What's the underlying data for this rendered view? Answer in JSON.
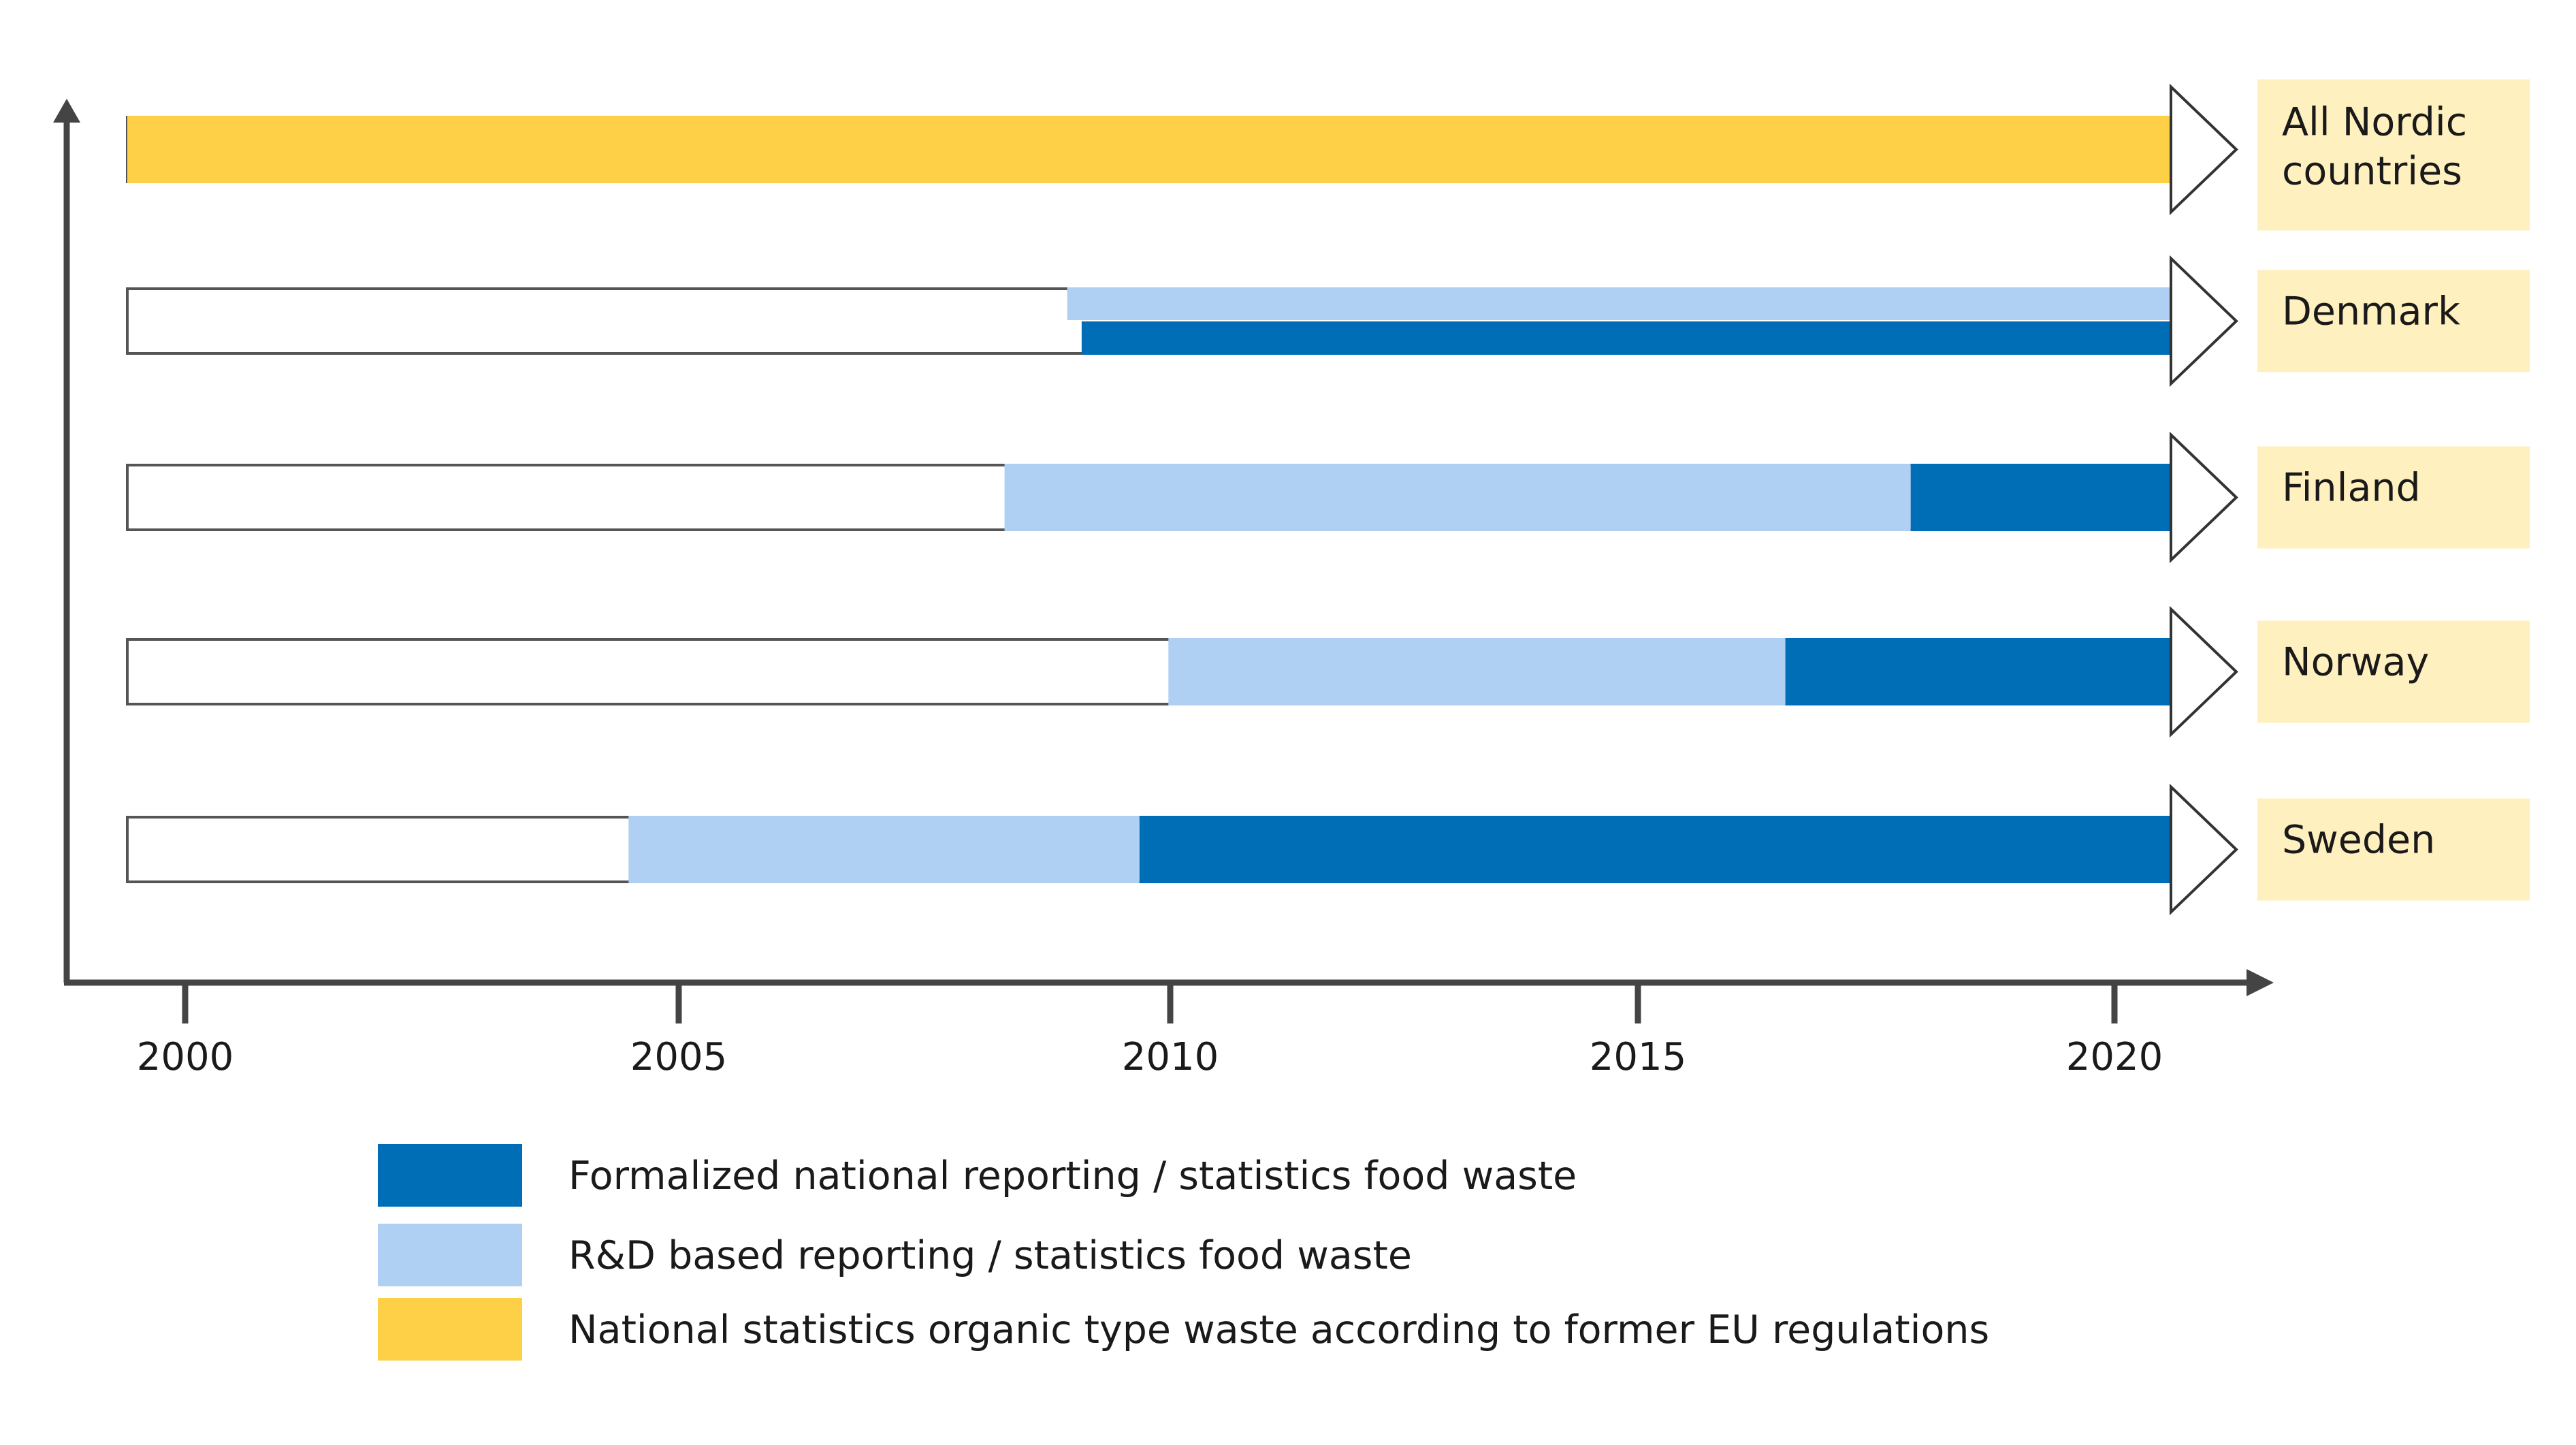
{
  "chart_data": {
    "type": "timeline-bar",
    "x_ticks": [
      2000,
      2005,
      2010,
      2015,
      2020
    ],
    "x_range": [
      1999.4,
      2020.6
    ],
    "rows": [
      {
        "label_lines": [
          "All Nordic",
          "countries"
        ],
        "segments": [
          {
            "type": "national",
            "start": 1999.4,
            "end": 2020.6
          }
        ]
      },
      {
        "label_lines": [
          "Denmark"
        ],
        "segments": [
          {
            "type": "rd",
            "start": 2009.15,
            "end": 2020.6,
            "lane": "top"
          },
          {
            "type": "formal",
            "start": 2009.3,
            "end": 2020.6,
            "lane": "bottom"
          }
        ]
      },
      {
        "label_lines": [
          "Finland"
        ],
        "segments": [
          {
            "type": "rd",
            "start": 2008.5,
            "end": 2017.9
          },
          {
            "type": "formal",
            "start": 2017.9,
            "end": 2020.6
          }
        ]
      },
      {
        "label_lines": [
          "Norway"
        ],
        "segments": [
          {
            "type": "rd",
            "start": 2010.2,
            "end": 2016.6
          },
          {
            "type": "formal",
            "start": 2016.6,
            "end": 2020.6
          }
        ]
      },
      {
        "label_lines": [
          "Sweden"
        ],
        "segments": [
          {
            "type": "rd",
            "start": 2004.6,
            "end": 2009.9
          },
          {
            "type": "formal",
            "start": 2009.9,
            "end": 2020.6
          }
        ]
      }
    ],
    "legend": [
      {
        "key": "formal",
        "label": "Formalized national reporting / statistics food waste",
        "color": "#006eb6"
      },
      {
        "key": "rd",
        "label": "R&D based reporting / statistics food waste",
        "color": "#afd0f2"
      },
      {
        "key": "national",
        "label": "National statistics organic type waste according to former EU regulations",
        "color": "#fdd047"
      }
    ],
    "label_box_color": "#fff0bf",
    "axis_color": "#444444"
  }
}
